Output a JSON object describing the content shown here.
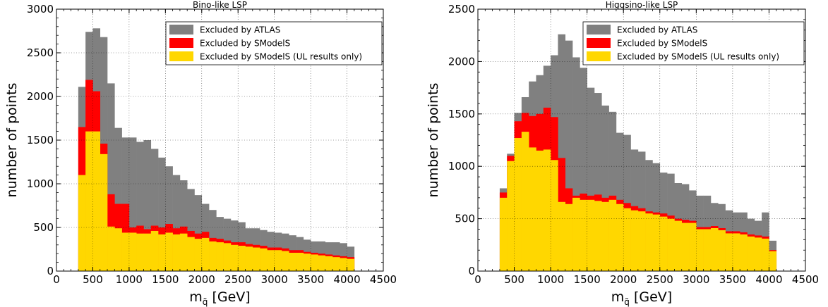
{
  "colors": {
    "atlas": "#808080",
    "smodels": "#ff0000",
    "ul_only": "#ffd700"
  },
  "chart_data": [
    {
      "type": "bar",
      "stacked_overlay": true,
      "title": "Bino-like LSP",
      "xlabel": "m",
      "xlabel_sub": "q̃",
      "xlabel_unit": "[GeV]",
      "ylabel": "number of points",
      "xlim": [
        0,
        4500
      ],
      "ylim": [
        0,
        3000
      ],
      "xticks": [
        0,
        500,
        1000,
        1500,
        2000,
        2500,
        3000,
        3500,
        4000,
        4500
      ],
      "yticks": [
        0,
        500,
        1000,
        1500,
        2000,
        2500,
        3000
      ],
      "grid": true,
      "legend_position": "top-right",
      "bin_edges": [
        300,
        400,
        500,
        600,
        700,
        800,
        900,
        1000,
        1100,
        1200,
        1300,
        1400,
        1500,
        1600,
        1700,
        1800,
        1900,
        2000,
        2100,
        2200,
        2300,
        2400,
        2500,
        2600,
        2700,
        2800,
        2900,
        3000,
        3100,
        3200,
        3300,
        3400,
        3500,
        3600,
        3700,
        3800,
        3900,
        4000,
        4100
      ],
      "series": [
        {
          "name": "Excluded by ATLAS",
          "color_key": "atlas",
          "values": [
            2110,
            2740,
            2780,
            2680,
            2150,
            1640,
            1530,
            1530,
            1480,
            1500,
            1400,
            1300,
            1200,
            1100,
            1040,
            940,
            870,
            770,
            700,
            620,
            600,
            580,
            560,
            490,
            490,
            470,
            450,
            440,
            430,
            410,
            390,
            360,
            340,
            340,
            330,
            330,
            320,
            280,
            90
          ]
        },
        {
          "name": "Excluded by SModelS",
          "color_key": "smodels",
          "values": [
            1650,
            2190,
            2060,
            1460,
            880,
            770,
            770,
            500,
            520,
            480,
            520,
            500,
            540,
            490,
            510,
            460,
            430,
            450,
            380,
            370,
            350,
            330,
            330,
            310,
            300,
            290,
            270,
            270,
            260,
            240,
            240,
            220,
            210,
            200,
            190,
            180,
            170,
            160,
            50
          ]
        },
        {
          "name": "Excluded by SModelS (UL results only)",
          "color_key": "ul_only",
          "values": [
            1100,
            1600,
            1600,
            1340,
            510,
            490,
            440,
            440,
            430,
            430,
            460,
            420,
            440,
            420,
            430,
            390,
            370,
            380,
            340,
            330,
            320,
            300,
            290,
            280,
            270,
            260,
            240,
            240,
            230,
            210,
            210,
            200,
            190,
            180,
            170,
            160,
            150,
            140,
            40
          ]
        }
      ]
    },
    {
      "type": "bar",
      "stacked_overlay": true,
      "title": "Higgsino-like LSP",
      "xlabel": "m",
      "xlabel_sub": "q̃",
      "xlabel_unit": "[GeV]",
      "ylabel": "number of points",
      "xlim": [
        0,
        4500
      ],
      "ylim": [
        0,
        2500
      ],
      "xticks": [
        0,
        500,
        1000,
        1500,
        2000,
        2500,
        3000,
        3500,
        4000,
        4500
      ],
      "yticks": [
        0,
        500,
        1000,
        1500,
        2000,
        2500
      ],
      "grid": true,
      "legend_position": "top-right",
      "bin_edges": [
        300,
        400,
        500,
        600,
        700,
        800,
        900,
        1000,
        1100,
        1200,
        1300,
        1400,
        1500,
        1600,
        1700,
        1800,
        1900,
        2000,
        2100,
        2200,
        2300,
        2400,
        2500,
        2600,
        2700,
        2800,
        2900,
        3000,
        3100,
        3200,
        3300,
        3400,
        3500,
        3600,
        3700,
        3800,
        3900,
        4000,
        4100
      ],
      "series": [
        {
          "name": "Excluded by ATLAS",
          "color_key": "atlas",
          "values": [
            790,
            1120,
            1510,
            1660,
            1810,
            1870,
            1960,
            2060,
            2260,
            2200,
            2040,
            1940,
            1750,
            1700,
            1580,
            1520,
            1320,
            1300,
            1160,
            1140,
            1060,
            1030,
            940,
            930,
            840,
            830,
            770,
            720,
            720,
            650,
            640,
            580,
            560,
            560,
            500,
            480,
            560,
            290,
            30
          ]
        },
        {
          "name": "Excluded by SModelS",
          "color_key": "smodels",
          "values": [
            750,
            1100,
            1430,
            1510,
            1480,
            1500,
            1560,
            1470,
            1080,
            790,
            720,
            740,
            720,
            730,
            700,
            720,
            680,
            650,
            620,
            600,
            570,
            560,
            550,
            530,
            500,
            490,
            480,
            420,
            420,
            430,
            410,
            380,
            380,
            370,
            350,
            340,
            330,
            200,
            20
          ]
        },
        {
          "name": "Excluded by SModelS (UL results only)",
          "color_key": "ul_only",
          "values": [
            700,
            1050,
            1270,
            1330,
            1180,
            1150,
            1160,
            1060,
            660,
            640,
            700,
            680,
            680,
            670,
            660,
            680,
            640,
            600,
            580,
            570,
            550,
            540,
            520,
            500,
            480,
            460,
            460,
            400,
            400,
            410,
            390,
            360,
            360,
            350,
            330,
            320,
            310,
            190,
            20
          ]
        }
      ]
    }
  ]
}
